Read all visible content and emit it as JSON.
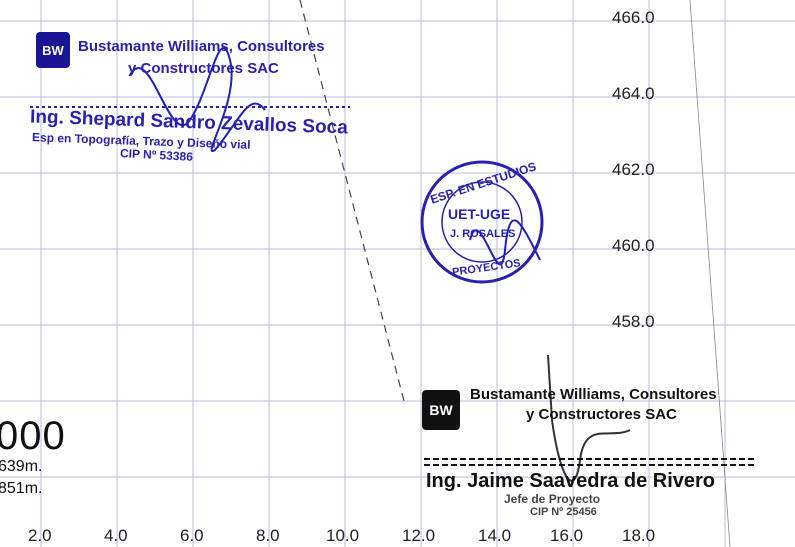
{
  "y_axis_labels": [
    "466.0",
    "464.0",
    "462.0",
    "460.0",
    "458.0"
  ],
  "x_axis_labels": [
    "2.0",
    "4.0",
    "6.0",
    "8.0",
    "10.0",
    "12.0",
    "14.0",
    "16.0",
    "18.0"
  ],
  "left_fragment": {
    "big": "000",
    "line1": "639m.",
    "line2": "851m."
  },
  "stamp_top": {
    "company_line1": "Bustamante Williams, Consultores",
    "company_line2": "y Constructores SAC",
    "name": "Ing. Shepard Sandro Zevallos Soca",
    "role": "Esp  en Topografía, Trazo y Diseño vial",
    "cip": "CIP Nº 53386"
  },
  "seal": {
    "top": "ESP. EN ESTUDIOS",
    "center": "UET-UGE",
    "name": "J. ROSALES",
    "bottom": "PROYECTOS"
  },
  "stamp_bottom": {
    "company_line1": "Bustamante Williams, Consultores",
    "company_line2": "y Constructores SAC",
    "name": "Ing. Jaime Saavedra de Rivero",
    "role": "Jefe de Proyecto",
    "cip": "CIP Nº 25456"
  },
  "colors": {
    "stamp_blue": "#2a1fb0",
    "grid": "#b8bcd8",
    "ink_dark": "#111111"
  }
}
